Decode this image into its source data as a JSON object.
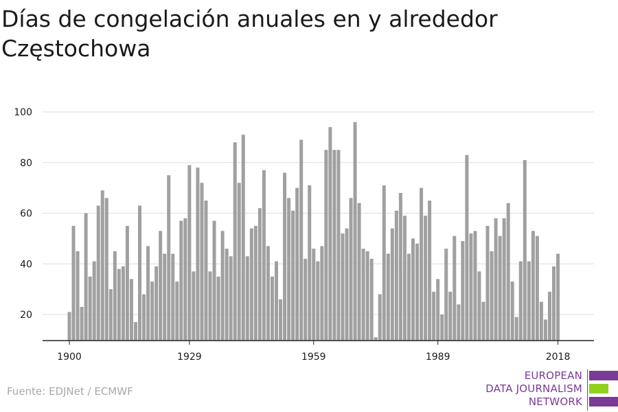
{
  "title": "Días de congelación anuales en y alrededor Częstochowa",
  "source": "Fuente: EDJNet / ECMWF",
  "logo": {
    "lines": [
      "EUROPEAN",
      "DATA JOURNALISM",
      "NETWORK"
    ],
    "colors": {
      "purple": "#7b3a96",
      "green": "#8fd11c"
    }
  },
  "colors": {
    "bar": "#a0a0a0",
    "grid": "#dddddd",
    "axis": "#222222",
    "text": "#1a1a1a"
  },
  "chart_data": {
    "type": "bar",
    "title": "Días de congelación anuales en y alrededor Częstochowa",
    "xlabel": "",
    "ylabel": "",
    "x": [
      1900,
      1901,
      1902,
      1903,
      1904,
      1905,
      1906,
      1907,
      1908,
      1909,
      1910,
      1911,
      1912,
      1913,
      1914,
      1915,
      1916,
      1917,
      1918,
      1919,
      1920,
      1921,
      1922,
      1923,
      1924,
      1925,
      1926,
      1927,
      1928,
      1929,
      1930,
      1931,
      1932,
      1933,
      1934,
      1935,
      1936,
      1937,
      1938,
      1939,
      1940,
      1941,
      1942,
      1943,
      1944,
      1945,
      1946,
      1947,
      1948,
      1949,
      1950,
      1951,
      1952,
      1953,
      1954,
      1955,
      1956,
      1957,
      1958,
      1959,
      1960,
      1961,
      1962,
      1963,
      1964,
      1965,
      1966,
      1967,
      1968,
      1969,
      1970,
      1971,
      1972,
      1973,
      1974,
      1975,
      1976,
      1977,
      1978,
      1979,
      1980,
      1981,
      1982,
      1983,
      1984,
      1985,
      1986,
      1987,
      1988,
      1989,
      1990,
      1991,
      1992,
      1993,
      1994,
      1995,
      1996,
      1997,
      1998,
      1999,
      2000,
      2001,
      2002,
      2003,
      2004,
      2005,
      2006,
      2007,
      2008,
      2009,
      2010,
      2011,
      2012,
      2013,
      2014,
      2015,
      2016,
      2017,
      2018
    ],
    "values": [
      21,
      55,
      45,
      23,
      60,
      35,
      41,
      63,
      69,
      66,
      30,
      45,
      38,
      39,
      55,
      34,
      17,
      63,
      28,
      47,
      33,
      39,
      53,
      44,
      75,
      44,
      33,
      57,
      58,
      79,
      37,
      78,
      72,
      65,
      37,
      57,
      35,
      53,
      46,
      43,
      88,
      72,
      91,
      43,
      54,
      55,
      62,
      77,
      47,
      35,
      41,
      26,
      76,
      66,
      61,
      70,
      89,
      42,
      71,
      46,
      41,
      47,
      85,
      94,
      85,
      85,
      52,
      54,
      66,
      96,
      64,
      46,
      45,
      42,
      11,
      28,
      71,
      44,
      54,
      61,
      68,
      59,
      44,
      50,
      48,
      70,
      59,
      65,
      29,
      34,
      20,
      46,
      29,
      51,
      24,
      49,
      83,
      52,
      53,
      37,
      25,
      55,
      45,
      58,
      51,
      58,
      64,
      33,
      19,
      41,
      81,
      41,
      53,
      51,
      25,
      18,
      29,
      39,
      44
    ],
    "xticks": [
      1900,
      1929,
      1959,
      1989,
      2018
    ],
    "yticks": [
      20,
      40,
      60,
      80,
      100
    ],
    "ylim": [
      10,
      100
    ],
    "grid": true,
    "legend": "none"
  }
}
